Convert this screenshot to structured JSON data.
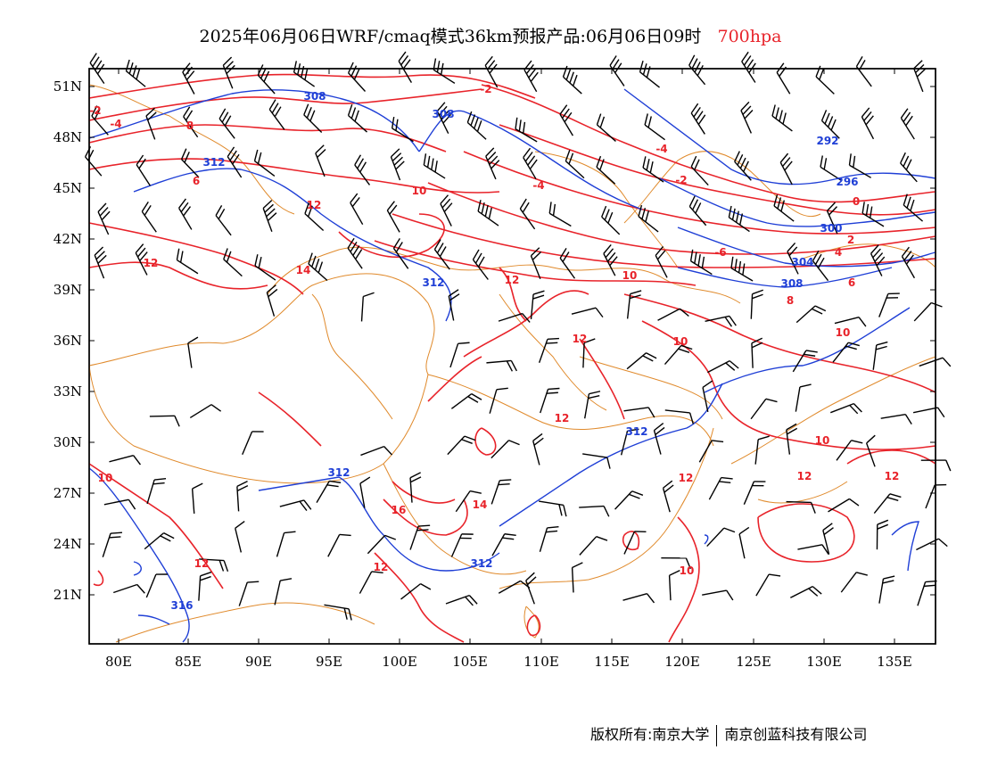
{
  "title": {
    "main": "2025年06月06日WRF/cmaq模式36km预报产品:06月06日09时",
    "level": "700hpa",
    "level_color": "#e8232a"
  },
  "axes": {
    "y_labels": [
      "51N",
      "48N",
      "45N",
      "42N",
      "39N",
      "36N",
      "33N",
      "30N",
      "27N",
      "24N",
      "21N"
    ],
    "x_labels": [
      "80E",
      "85E",
      "90E",
      "95E",
      "100E",
      "105E",
      "110E",
      "115E",
      "120E",
      "125E",
      "130E",
      "135E"
    ]
  },
  "colors": {
    "temperature_contour": "#e8232a",
    "height_contour": "#1f3fd6",
    "boundary": "#e08a2c",
    "wind_barb": "#000000"
  },
  "height_labels": [
    "308",
    "308",
    "312",
    "312",
    "312",
    "312",
    "312",
    "292",
    "296",
    "300",
    "304",
    "308",
    "316"
  ],
  "temp_labels": [
    "-2",
    "-2",
    "-4",
    "-4",
    "-4",
    "-6",
    "-2",
    "0",
    "2",
    "4",
    "6",
    "8",
    "6",
    "8",
    "10",
    "10",
    "12",
    "14",
    "12",
    "12",
    "12",
    "12",
    "10",
    "10",
    "10",
    "12",
    "12",
    "12",
    "14",
    "16",
    "10",
    "12",
    "12",
    "10"
  ],
  "footer": {
    "left": "版权所有:南京大学",
    "right": "南京创蓝科技有限公司"
  }
}
